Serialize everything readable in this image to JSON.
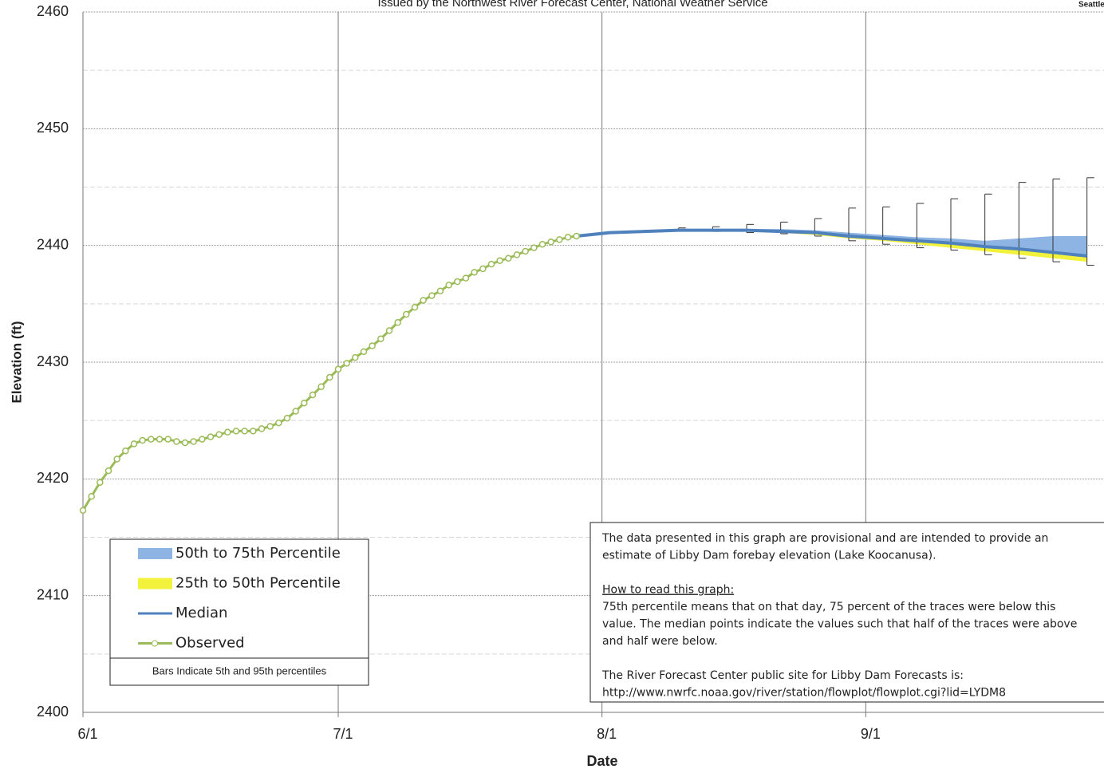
{
  "chart_data": {
    "type": "line",
    "subtitle": "Issued by the Northwest River Forecast Center, National Weather Service",
    "corner_text": "Seattle",
    "y_label": "Elevation (ft)",
    "x_label": "Date",
    "xlim": [
      0,
      120
    ],
    "ylim": [
      2400,
      2460
    ],
    "xticks": [
      {
        "value": 0,
        "label": "6/1"
      },
      {
        "value": 30,
        "label": "7/1"
      },
      {
        "value": 61,
        "label": "8/1"
      },
      {
        "value": 92,
        "label": "9/1"
      }
    ],
    "yticks": [
      2400,
      2410,
      2420,
      2430,
      2440,
      2450,
      2460
    ],
    "yminorticks": [
      2405,
      2415,
      2425,
      2435,
      2445,
      2455
    ],
    "grid": true,
    "series": [
      {
        "name": "50th to 75th Percentile",
        "style": "band",
        "color": "#8db4e2",
        "x": [
          58,
          62,
          66,
          70,
          74,
          78,
          82,
          86,
          90,
          94,
          98,
          102,
          106,
          110,
          114,
          118
        ],
        "values": [
          2440.8,
          2441.1,
          2441.3,
          2441.4,
          2441.4,
          2441.4,
          2441.4,
          2441.3,
          2441.1,
          2440.9,
          2440.7,
          2440.6,
          2440.4,
          2440.6,
          2440.8,
          2440.8
        ]
      },
      {
        "name": "25th to 50th Percentile",
        "style": "band",
        "color": "#f2f23c",
        "x": [
          58,
          62,
          66,
          70,
          74,
          78,
          82,
          86,
          90,
          94,
          98,
          102,
          106,
          110,
          114,
          118
        ],
        "values": [
          2440.8,
          2441.1,
          2441.2,
          2441.3,
          2441.3,
          2441.2,
          2441.1,
          2440.9,
          2440.6,
          2440.4,
          2440.1,
          2439.8,
          2439.5,
          2439.2,
          2438.9,
          2438.6
        ]
      },
      {
        "name": "Median",
        "style": "line",
        "color": "#4f81bd",
        "x": [
          58,
          62,
          66,
          70,
          74,
          78,
          82,
          86,
          90,
          94,
          98,
          102,
          106,
          110,
          114,
          118
        ],
        "values": [
          2440.8,
          2441.1,
          2441.2,
          2441.3,
          2441.3,
          2441.3,
          2441.2,
          2441.1,
          2440.8,
          2440.6,
          2440.4,
          2440.2,
          2439.9,
          2439.7,
          2439.4,
          2439.1
        ]
      },
      {
        "name": "Observed",
        "style": "markers",
        "color": "#9bbb59",
        "x": [
          0,
          1,
          2,
          3,
          4,
          5,
          6,
          7,
          8,
          9,
          10,
          11,
          12,
          13,
          14,
          15,
          16,
          17,
          18,
          19,
          20,
          21,
          22,
          23,
          24,
          25,
          26,
          27,
          28,
          29,
          30,
          31,
          32,
          33,
          34,
          35,
          36,
          37,
          38,
          39,
          40,
          41,
          42,
          43,
          44,
          45,
          46,
          47,
          48,
          49,
          50,
          51,
          52,
          53,
          54,
          55,
          56,
          57,
          58
        ],
        "values": [
          2417.3,
          2418.5,
          2419.7,
          2420.7,
          2421.7,
          2422.4,
          2423.0,
          2423.3,
          2423.4,
          2423.4,
          2423.4,
          2423.2,
          2423.1,
          2423.2,
          2423.4,
          2423.6,
          2423.8,
          2424.0,
          2424.1,
          2424.1,
          2424.1,
          2424.3,
          2424.5,
          2424.8,
          2425.2,
          2425.8,
          2426.5,
          2427.2,
          2427.9,
          2428.7,
          2429.4,
          2429.9,
          2430.4,
          2430.9,
          2431.4,
          2432.0,
          2432.7,
          2433.4,
          2434.1,
          2434.7,
          2435.3,
          2435.7,
          2436.1,
          2436.6,
          2436.9,
          2437.2,
          2437.7,
          2438.0,
          2438.4,
          2438.7,
          2438.9,
          2439.2,
          2439.5,
          2439.8,
          2440.1,
          2440.3,
          2440.5,
          2440.7,
          2440.8
        ]
      }
    ],
    "bars": {
      "label": "Bars Indicate 5th and 95th percentiles",
      "color": "#333333",
      "x": [
        58,
        62,
        66,
        70,
        74,
        78,
        82,
        86,
        90,
        94,
        98,
        102,
        106,
        110,
        114,
        118
      ],
      "low": [
        2440.8,
        2441.1,
        2441.2,
        2441.3,
        2441.2,
        2441.1,
        2441.0,
        2440.8,
        2440.4,
        2440.1,
        2439.8,
        2439.6,
        2439.2,
        2438.9,
        2438.6,
        2438.3
      ],
      "high": [
        2440.8,
        2441.1,
        2441.3,
        2441.5,
        2441.6,
        2441.8,
        2442.0,
        2442.3,
        2443.2,
        2443.3,
        2443.6,
        2444.0,
        2444.4,
        2445.4,
        2445.7,
        2445.8
      ]
    },
    "note": {
      "intro": [
        "The data presented in this graph are provisional  and are intended to provide  an",
        "estimate of Libby Dam forebay elevation (Lake Koocanusa)."
      ],
      "heading": "How to read this graph:",
      "body": [
        "75th percentile means that on that day, 75 percent of the traces were below this",
        "value.  The median points indicate the values such that half of  the traces were above",
        "and half were  below."
      ],
      "footer": [
        "The River Forecast Center public site for Libby Dam Forecasts is:",
        "http://www.nwrfc.noaa.gov/river/station/flowplot/flowplot.cgi?lid=LYDM8"
      ]
    }
  }
}
